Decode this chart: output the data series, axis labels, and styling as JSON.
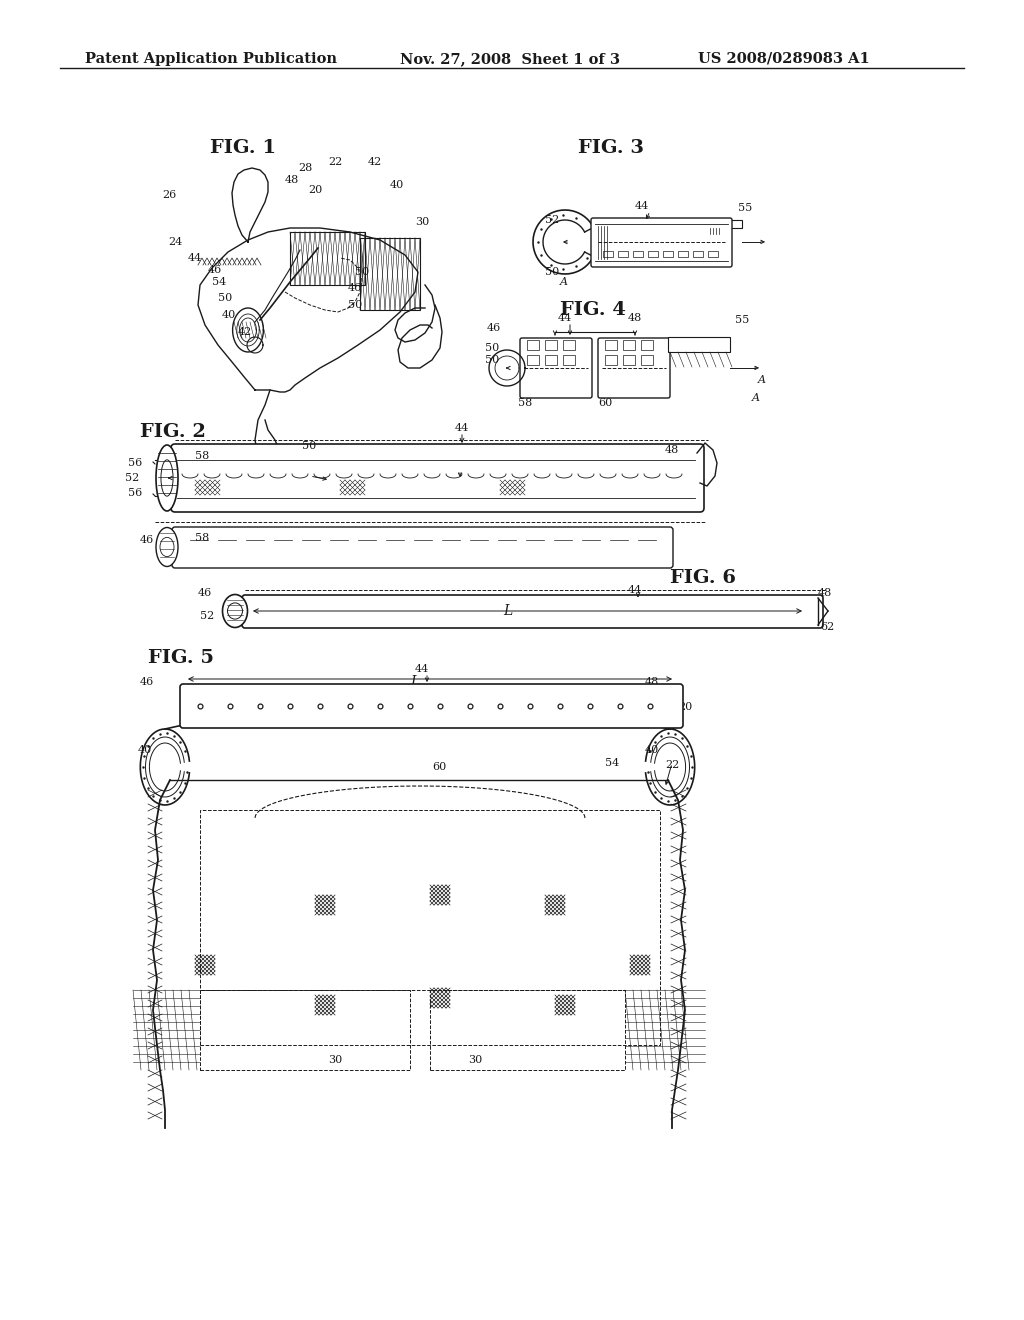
{
  "bg_color": "#ffffff",
  "line_color": "#1a1a1a",
  "header_left": "Patent Application Publication",
  "header_mid": "Nov. 27, 2008  Sheet 1 of 3",
  "header_right": "US 2008/0289083 A1"
}
